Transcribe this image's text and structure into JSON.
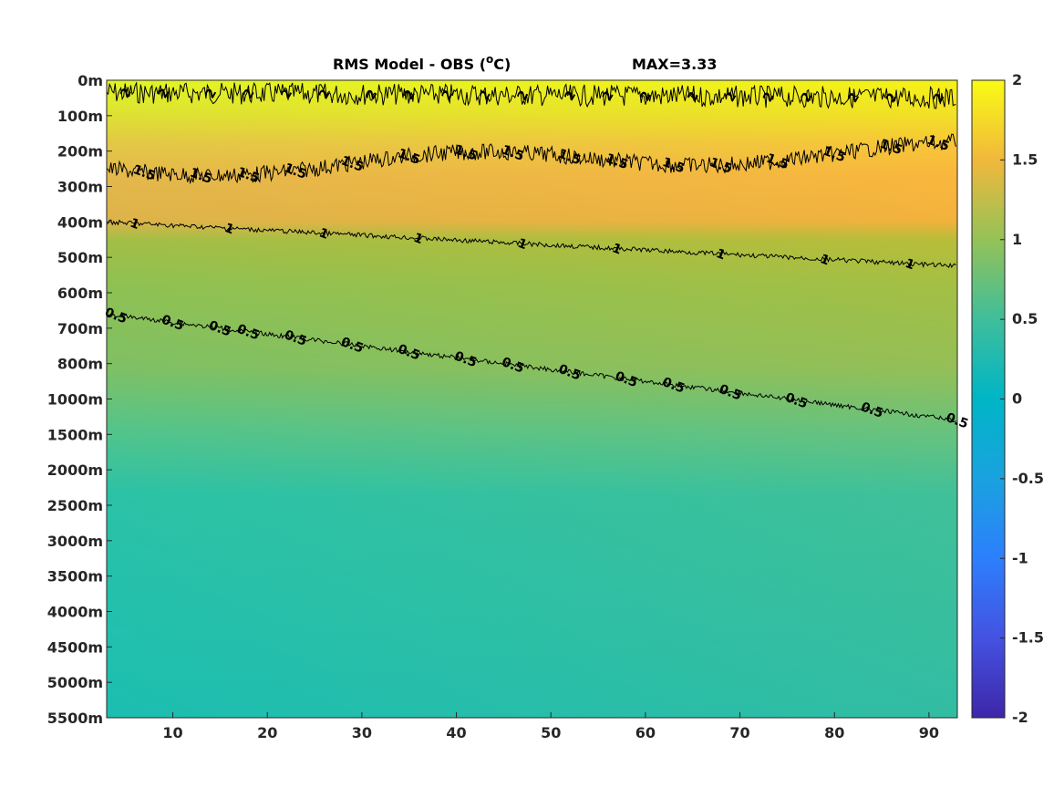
{
  "chart_data": {
    "type": "heatmap",
    "title": "RMS Model - OBS (",
    "title_unit": "o",
    "title_unit_suffix": "C)",
    "annotation": "MAX=3.33",
    "xlim": [
      3,
      93
    ],
    "x_ticks": [
      10,
      20,
      30,
      40,
      50,
      60,
      70,
      80,
      90
    ],
    "y_ticks": [
      "0m",
      "100m",
      "200m",
      "300m",
      "400m",
      "500m",
      "600m",
      "700m",
      "800m",
      "1000m",
      "1500m",
      "2000m",
      "2500m",
      "3000m",
      "3500m",
      "4000m",
      "4500m",
      "5000m",
      "5500m"
    ],
    "colorbar": {
      "range": [
        -2,
        2
      ],
      "ticks": [
        "2",
        "1.5",
        "1",
        "0.5",
        "0",
        "-0.5",
        "-1",
        "-1.5",
        "-2"
      ],
      "colormap": "parula"
    },
    "contours": [
      {
        "level": "2",
        "depth_index_start": 0.35,
        "depth_index_end": 0.5,
        "label_x": [
          5,
          9,
          14,
          18,
          22,
          26,
          31,
          35,
          39,
          43,
          47,
          52,
          56,
          60,
          65,
          69,
          73,
          77,
          82,
          86,
          91
        ]
      },
      {
        "level": "1.5",
        "depth_index_start": 2.5,
        "depth_index_end": 2.0,
        "label_x": [
          7,
          13,
          18,
          23,
          29,
          35,
          41,
          46,
          52,
          57,
          63,
          68,
          74,
          80,
          86,
          91
        ]
      },
      {
        "level": "1",
        "depth_index_start": 4.0,
        "depth_index_end": 5.25,
        "label_x": [
          6,
          16,
          26,
          36,
          47,
          57,
          68,
          79,
          88
        ]
      },
      {
        "level": "0.5",
        "depth_index_start": 6.6,
        "depth_index_end": 9.6,
        "label_x": [
          4,
          10,
          15,
          18,
          23,
          29,
          35,
          41,
          46,
          52,
          58,
          63,
          69,
          76,
          84,
          93
        ]
      }
    ]
  }
}
